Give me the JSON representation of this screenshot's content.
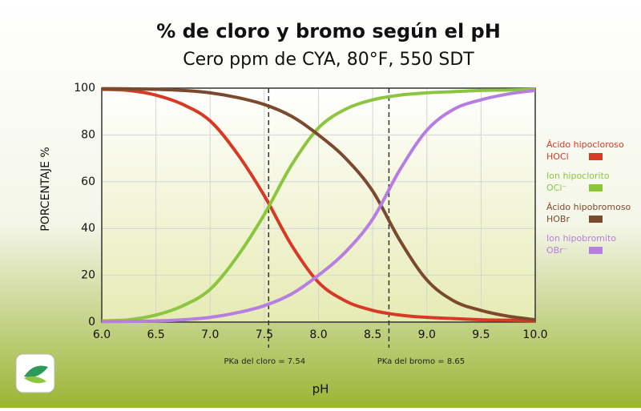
{
  "chart_data": {
    "type": "line",
    "title": "% de cloro y bromo según el pH",
    "subtitle": "Cero ppm de CYA, 80°F, 550 SDT",
    "x_label": "pH",
    "y_label": "PORCENTAJE %",
    "x": [
      6.0,
      6.25,
      6.5,
      6.75,
      7.0,
      7.25,
      7.5,
      7.75,
      8.0,
      8.25,
      8.5,
      8.75,
      9.0,
      9.25,
      9.5,
      9.75,
      10.0
    ],
    "series": [
      {
        "name": "Ácido hipocloroso",
        "formula": "HOCl",
        "color": "#d63a25",
        "values": [
          99.5,
          99,
          97,
          93,
          86,
          72,
          54,
          33,
          17,
          9,
          5,
          3,
          2,
          1.5,
          1,
          0.8,
          0.5
        ]
      },
      {
        "name": "Ion hipoclorito",
        "formula": "OCl⁻",
        "color": "#8cc63f",
        "values": [
          0.5,
          1,
          3,
          7,
          14,
          28,
          46,
          67,
          83,
          91,
          95,
          97,
          98,
          98.5,
          99,
          99.2,
          99.5
        ]
      },
      {
        "name": "Ácido hipobromoso",
        "formula": "HOBr",
        "color": "#7b4a2e",
        "values": [
          99.8,
          99.7,
          99.5,
          99,
          98,
          96,
          93,
          88,
          80,
          70,
          56,
          35,
          18,
          9,
          5,
          2.5,
          1
        ]
      },
      {
        "name": "Ion hipobromito",
        "formula": "OBr⁻",
        "color": "#b57ee0",
        "values": [
          0.2,
          0.3,
          0.5,
          1,
          2,
          4,
          7,
          12,
          20,
          30,
          44,
          65,
          82,
          91,
          95,
          97.5,
          99
        ]
      }
    ],
    "reference_lines": [
      {
        "x": 7.54,
        "label": "PKa del cloro = 7.54"
      },
      {
        "x": 8.65,
        "label": "PKa del bromo  = 8.65"
      }
    ],
    "xlim": [
      6.0,
      10.0
    ],
    "ylim": [
      0,
      100
    ],
    "xticks": [
      {
        "value": 6,
        "label": "6.0"
      },
      6.5,
      {
        "value": 7,
        "label": "7.0"
      },
      7.5,
      {
        "value": 8,
        "label": "8.0"
      },
      8.5,
      {
        "value": 9,
        "label": "9.0"
      },
      9.5,
      {
        "value": 10,
        "label": "10.0"
      }
    ],
    "yticks": [
      0,
      20,
      40,
      60,
      80,
      100
    ],
    "grid": true
  }
}
